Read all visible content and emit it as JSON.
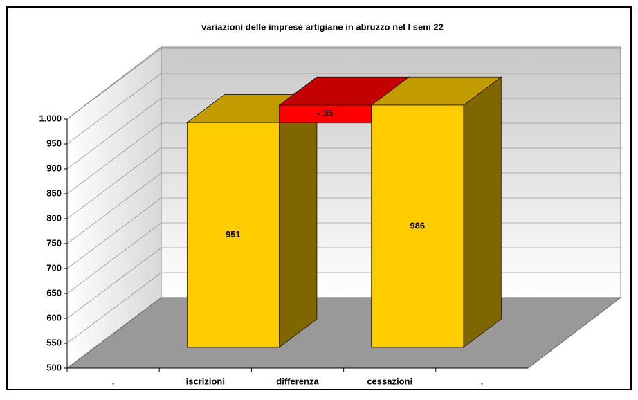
{
  "chart_data": {
    "type": "bar3d",
    "title": "variazioni delle imprese artigiane in abruzzo nel I sem 22",
    "categories": [
      ".",
      "iscrizioni",
      "differenza",
      "cessazioni",
      "."
    ],
    "values": [
      null,
      951,
      -35,
      986,
      null
    ],
    "value_labels": [
      null,
      "951",
      "- 35",
      "986",
      null
    ],
    "colors": [
      null,
      "#ffcc00",
      "#ff0000",
      "#ffcc00",
      null
    ],
    "ylim": [
      500,
      1000
    ],
    "yticks": [
      500,
      550,
      600,
      650,
      700,
      750,
      800,
      850,
      900,
      950,
      {
        "value": 1000,
        "label": "1.000"
      }
    ],
    "grid": true
  }
}
